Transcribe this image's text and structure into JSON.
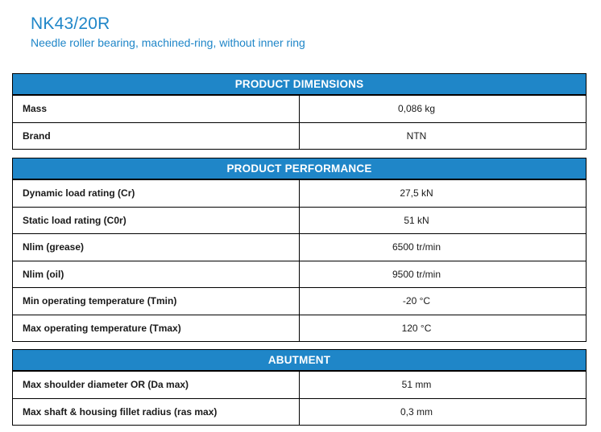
{
  "product": {
    "title": "NK43/20R",
    "subtitle": "Needle roller bearing, machined-ring, without inner ring"
  },
  "sections": [
    {
      "header": "PRODUCT DIMENSIONS",
      "rows": [
        {
          "label": "Mass",
          "value": "0,086 kg"
        },
        {
          "label": "Brand",
          "value": "NTN"
        }
      ]
    },
    {
      "header": "PRODUCT PERFORMANCE",
      "rows": [
        {
          "label": "Dynamic load rating (Cr)",
          "value": "27,5 kN"
        },
        {
          "label": "Static load rating (C0r)",
          "value": "51 kN"
        },
        {
          "label": "Nlim (grease)",
          "value": "6500 tr/min"
        },
        {
          "label": "Nlim (oil)",
          "value": "9500 tr/min"
        },
        {
          "label": "Min operating temperature (Tmin)",
          "value": "-20 °C"
        },
        {
          "label": "Max operating temperature (Tmax)",
          "value": "120 °C"
        }
      ]
    },
    {
      "header": "ABUTMENT",
      "rows": [
        {
          "label": "Max shoulder diameter OR (Da max)",
          "value": "51 mm"
        },
        {
          "label": "Max shaft & housing fillet radius (ras max)",
          "value": "0,3 mm"
        }
      ]
    }
  ],
  "colors": {
    "accent": "#1f86c8",
    "header_text": "#ffffff"
  }
}
